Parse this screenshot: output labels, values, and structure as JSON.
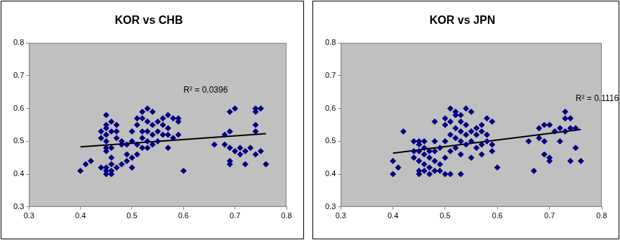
{
  "chart_data": [
    {
      "type": "scatter",
      "title": "KOR vs CHB",
      "color": "#000080",
      "marker": "diamond",
      "xlim": [
        0.3,
        0.8
      ],
      "xticks": [
        0.3,
        0.4,
        0.5,
        0.6,
        0.7,
        0.8
      ],
      "ylim": [
        0.3,
        0.8
      ],
      "yticks": [
        0.3,
        0.4,
        0.5,
        0.6,
        0.7,
        0.8
      ],
      "grid": false,
      "x": [
        0.4,
        0.41,
        0.42,
        0.44,
        0.44,
        0.44,
        0.45,
        0.45,
        0.45,
        0.45,
        0.45,
        0.45,
        0.45,
        0.45,
        0.45,
        0.45,
        0.46,
        0.46,
        0.46,
        0.46,
        0.46,
        0.46,
        0.46,
        0.47,
        0.47,
        0.47,
        0.47,
        0.48,
        0.48,
        0.48,
        0.49,
        0.49,
        0.49,
        0.5,
        0.5,
        0.5,
        0.5,
        0.51,
        0.51,
        0.51,
        0.51,
        0.52,
        0.52,
        0.52,
        0.52,
        0.52,
        0.53,
        0.53,
        0.53,
        0.53,
        0.53,
        0.54,
        0.54,
        0.54,
        0.54,
        0.55,
        0.55,
        0.55,
        0.56,
        0.56,
        0.56,
        0.57,
        0.57,
        0.57,
        0.57,
        0.58,
        0.58,
        0.59,
        0.59,
        0.59,
        0.6,
        0.66,
        0.68,
        0.68,
        0.69,
        0.69,
        0.69,
        0.69,
        0.69,
        0.7,
        0.7,
        0.71,
        0.71,
        0.72,
        0.72,
        0.73,
        0.74,
        0.74,
        0.74,
        0.74,
        0.74,
        0.75,
        0.75,
        0.76
      ],
      "values": [
        0.41,
        0.43,
        0.44,
        0.42,
        0.51,
        0.53,
        0.58,
        0.55,
        0.54,
        0.52,
        0.5,
        0.48,
        0.47,
        0.42,
        0.41,
        0.4,
        0.56,
        0.53,
        0.48,
        0.45,
        0.43,
        0.41,
        0.4,
        0.55,
        0.53,
        0.51,
        0.42,
        0.5,
        0.49,
        0.43,
        0.49,
        0.46,
        0.44,
        0.53,
        0.5,
        0.45,
        0.42,
        0.57,
        0.55,
        0.49,
        0.46,
        0.59,
        0.57,
        0.53,
        0.51,
        0.48,
        0.6,
        0.56,
        0.53,
        0.5,
        0.48,
        0.59,
        0.55,
        0.52,
        0.49,
        0.56,
        0.53,
        0.5,
        0.57,
        0.55,
        0.52,
        0.58,
        0.54,
        0.52,
        0.48,
        0.57,
        0.51,
        0.57,
        0.56,
        0.52,
        0.41,
        0.49,
        0.52,
        0.49,
        0.59,
        0.53,
        0.48,
        0.44,
        0.43,
        0.6,
        0.47,
        0.48,
        0.46,
        0.43,
        0.47,
        0.48,
        0.6,
        0.59,
        0.55,
        0.53,
        0.46,
        0.6,
        0.47,
        0.43
      ],
      "trendline": {
        "x": [
          0.4,
          0.76
        ],
        "values": [
          0.483,
          0.523
        ],
        "color": "#000000"
      },
      "annotations": [
        {
          "text": "R² = 0.0396",
          "x": 0.6,
          "y": 0.655
        }
      ]
    },
    {
      "type": "scatter",
      "title": "KOR vs JPN",
      "color": "#000080",
      "marker": "diamond",
      "xlim": [
        0.3,
        0.8
      ],
      "xticks": [
        0.3,
        0.4,
        0.5,
        0.6,
        0.7,
        0.8
      ],
      "ylim": [
        0.3,
        0.8
      ],
      "yticks": [
        0.3,
        0.4,
        0.5,
        0.6,
        0.7,
        0.8
      ],
      "grid": false,
      "x": [
        0.4,
        0.4,
        0.41,
        0.42,
        0.44,
        0.44,
        0.44,
        0.45,
        0.45,
        0.45,
        0.45,
        0.45,
        0.45,
        0.46,
        0.46,
        0.46,
        0.46,
        0.46,
        0.47,
        0.47,
        0.47,
        0.47,
        0.48,
        0.48,
        0.48,
        0.48,
        0.48,
        0.49,
        0.49,
        0.49,
        0.5,
        0.5,
        0.5,
        0.5,
        0.5,
        0.51,
        0.51,
        0.51,
        0.51,
        0.51,
        0.52,
        0.52,
        0.52,
        0.52,
        0.52,
        0.53,
        0.53,
        0.53,
        0.53,
        0.53,
        0.53,
        0.54,
        0.54,
        0.54,
        0.54,
        0.55,
        0.55,
        0.55,
        0.55,
        0.56,
        0.56,
        0.56,
        0.57,
        0.57,
        0.57,
        0.57,
        0.58,
        0.58,
        0.58,
        0.59,
        0.59,
        0.59,
        0.6,
        0.66,
        0.67,
        0.68,
        0.68,
        0.69,
        0.69,
        0.69,
        0.7,
        0.7,
        0.7,
        0.71,
        0.72,
        0.72,
        0.73,
        0.73,
        0.73,
        0.74,
        0.74,
        0.74,
        0.75,
        0.75,
        0.76
      ],
      "values": [
        0.4,
        0.44,
        0.42,
        0.53,
        0.5,
        0.47,
        0.45,
        0.5,
        0.49,
        0.47,
        0.44,
        0.41,
        0.4,
        0.5,
        0.48,
        0.46,
        0.43,
        0.41,
        0.47,
        0.45,
        0.42,
        0.4,
        0.56,
        0.5,
        0.47,
        0.44,
        0.41,
        0.48,
        0.43,
        0.41,
        0.57,
        0.55,
        0.5,
        0.45,
        0.4,
        0.6,
        0.56,
        0.52,
        0.47,
        0.4,
        0.59,
        0.58,
        0.54,
        0.51,
        0.48,
        0.58,
        0.56,
        0.53,
        0.5,
        0.46,
        0.4,
        0.6,
        0.55,
        0.52,
        0.49,
        0.59,
        0.53,
        0.5,
        0.45,
        0.54,
        0.52,
        0.48,
        0.55,
        0.53,
        0.49,
        0.46,
        0.57,
        0.52,
        0.5,
        0.56,
        0.49,
        0.47,
        0.42,
        0.5,
        0.41,
        0.54,
        0.51,
        0.55,
        0.5,
        0.46,
        0.55,
        0.45,
        0.44,
        0.53,
        0.54,
        0.5,
        0.59,
        0.57,
        0.53,
        0.57,
        0.54,
        0.44,
        0.54,
        0.48,
        0.44
      ],
      "trendline": {
        "x": [
          0.4,
          0.76
        ],
        "values": [
          0.464,
          0.536
        ],
        "color": "#000000"
      },
      "annotations": [
        {
          "text": "R² = 0.1116",
          "x": 0.75,
          "y": 0.63
        }
      ]
    }
  ]
}
